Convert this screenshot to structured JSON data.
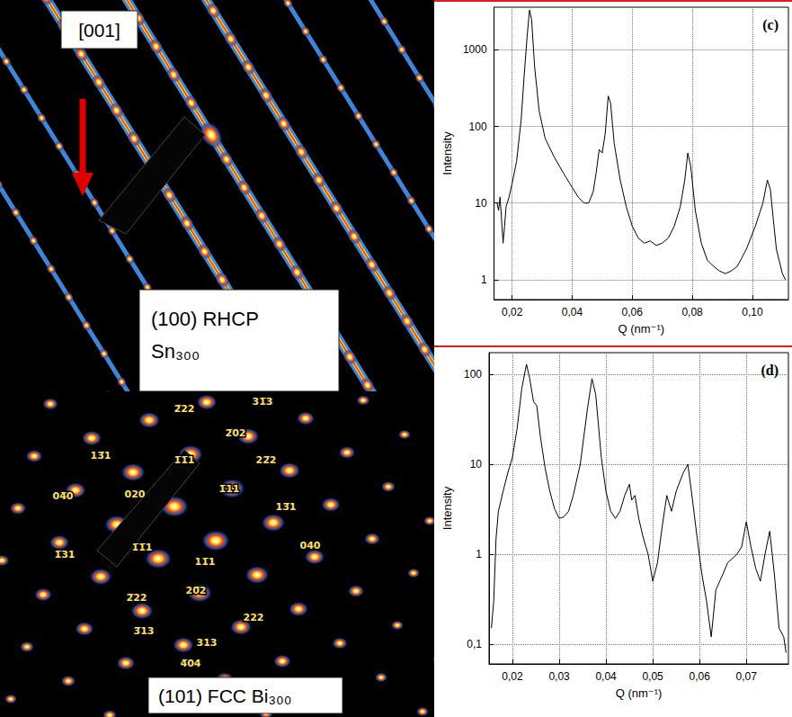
{
  "chart_data": [
    {
      "type": "line",
      "title": "(c)",
      "x_label": "Q (nm⁻¹)",
      "y_label": "Intensity",
      "color": "#000000",
      "log": "y",
      "grid": true,
      "xlim": [
        0.014,
        0.112
      ],
      "xticks": [
        {
          "value": 0.02,
          "label": "0,02"
        },
        {
          "value": 0.04,
          "label": "0,04"
        },
        {
          "value": 0.06,
          "label": "0,06"
        },
        {
          "value": 0.08,
          "label": "0,08"
        },
        {
          "value": 0.1,
          "label": "0,10"
        }
      ],
      "ylim": [
        0.55,
        3600
      ],
      "yticks": [
        1,
        10,
        100,
        1000
      ],
      "x": [
        0.015,
        0.0155,
        0.016,
        0.0165,
        0.017,
        0.0175,
        0.018,
        0.019,
        0.02,
        0.0215,
        0.023,
        0.024,
        0.025,
        0.0258,
        0.0265,
        0.0275,
        0.029,
        0.031,
        0.034,
        0.037,
        0.04,
        0.042,
        0.044,
        0.0455,
        0.047,
        0.048,
        0.049,
        0.05,
        0.051,
        0.052,
        0.0528,
        0.054,
        0.056,
        0.058,
        0.06,
        0.062,
        0.064,
        0.066,
        0.068,
        0.07,
        0.072,
        0.074,
        0.076,
        0.0775,
        0.0785,
        0.0795,
        0.081,
        0.083,
        0.085,
        0.087,
        0.089,
        0.091,
        0.093,
        0.095,
        0.098,
        0.101,
        0.1035,
        0.105,
        0.106,
        0.107,
        0.108,
        0.11,
        0.111
      ],
      "values": [
        10,
        8,
        12,
        6,
        3,
        5,
        9,
        12,
        18,
        35,
        120,
        450,
        1500,
        3300,
        2500,
        600,
        160,
        70,
        40,
        25,
        16,
        12,
        10,
        10,
        14,
        25,
        50,
        45,
        80,
        250,
        200,
        60,
        20,
        9,
        5,
        3.5,
        3,
        3.2,
        2.8,
        3,
        3.5,
        5,
        9,
        20,
        45,
        30,
        8,
        3,
        1.8,
        1.5,
        1.3,
        1.2,
        1.3,
        1.5,
        2.5,
        5,
        10,
        20,
        15,
        6,
        2.5,
        1.2,
        1.0
      ]
    },
    {
      "type": "line",
      "title": "(d)",
      "x_label": "Q (nm⁻¹)",
      "y_label": "Intensity",
      "color": "#000000",
      "log": "y",
      "grid": true,
      "xlim": [
        0.015,
        0.079
      ],
      "xticks": [
        {
          "value": 0.02,
          "label": "0,02"
        },
        {
          "value": 0.03,
          "label": "0,03"
        },
        {
          "value": 0.04,
          "label": "0,04"
        },
        {
          "value": 0.05,
          "label": "0,05"
        },
        {
          "value": 0.06,
          "label": "0,06"
        },
        {
          "value": 0.07,
          "label": "0,07"
        }
      ],
      "ylim": [
        0.06,
        175
      ],
      "yticks": [
        {
          "value": 0.1,
          "label": "0,1"
        },
        1,
        10,
        100
      ],
      "x": [
        0.0155,
        0.016,
        0.0165,
        0.017,
        0.018,
        0.019,
        0.02,
        0.021,
        0.022,
        0.023,
        0.0237,
        0.0245,
        0.0252,
        0.026,
        0.027,
        0.028,
        0.029,
        0.03,
        0.031,
        0.032,
        0.033,
        0.0345,
        0.036,
        0.037,
        0.0378,
        0.039,
        0.04,
        0.041,
        0.042,
        0.043,
        0.044,
        0.045,
        0.0455,
        0.0462,
        0.047,
        0.048,
        0.049,
        0.05,
        0.051,
        0.052,
        0.053,
        0.054,
        0.055,
        0.0565,
        0.0575,
        0.0585,
        0.0595,
        0.0605,
        0.0615,
        0.0625,
        0.0635,
        0.065,
        0.066,
        0.068,
        0.069,
        0.07,
        0.071,
        0.072,
        0.073,
        0.074,
        0.075,
        0.076,
        0.077,
        0.078,
        0.0785
      ],
      "values": [
        0.15,
        0.3,
        1.5,
        3,
        5,
        8,
        12,
        25,
        70,
        130,
        90,
        50,
        45,
        20,
        9,
        5,
        3.2,
        2.5,
        2.6,
        3,
        4.5,
        10,
        40,
        90,
        60,
        12,
        5,
        3,
        2.5,
        3,
        4.5,
        6,
        4,
        4.5,
        2.5,
        1.5,
        1,
        0.5,
        0.8,
        2,
        4.5,
        3,
        5,
        8,
        10,
        4,
        1.5,
        0.6,
        0.3,
        0.12,
        0.4,
        0.6,
        0.8,
        1,
        1.2,
        2.3,
        1.2,
        0.7,
        0.5,
        1.0,
        1.8,
        0.6,
        0.15,
        0.12,
        0.08
      ]
    }
  ],
  "images": [
    {
      "direction": "[001]",
      "caption": "(100) RHCP Sn₃₀₀"
    },
    {
      "caption": "(101) FCC Bi₃₀₀",
      "spot_labels": [
        "2̅22",
        "31̅3",
        "13̅1",
        "2̅02",
        "22̅2",
        "1̅1̅1",
        "04̅0",
        "020",
        "1̅11",
        "13̅1",
        "1̅31",
        "1̅1̅1",
        "11̅1",
        "040",
        "2̅22",
        "20̅2",
        "222",
        "3̅13",
        "313",
        "4̅04"
      ]
    }
  ]
}
